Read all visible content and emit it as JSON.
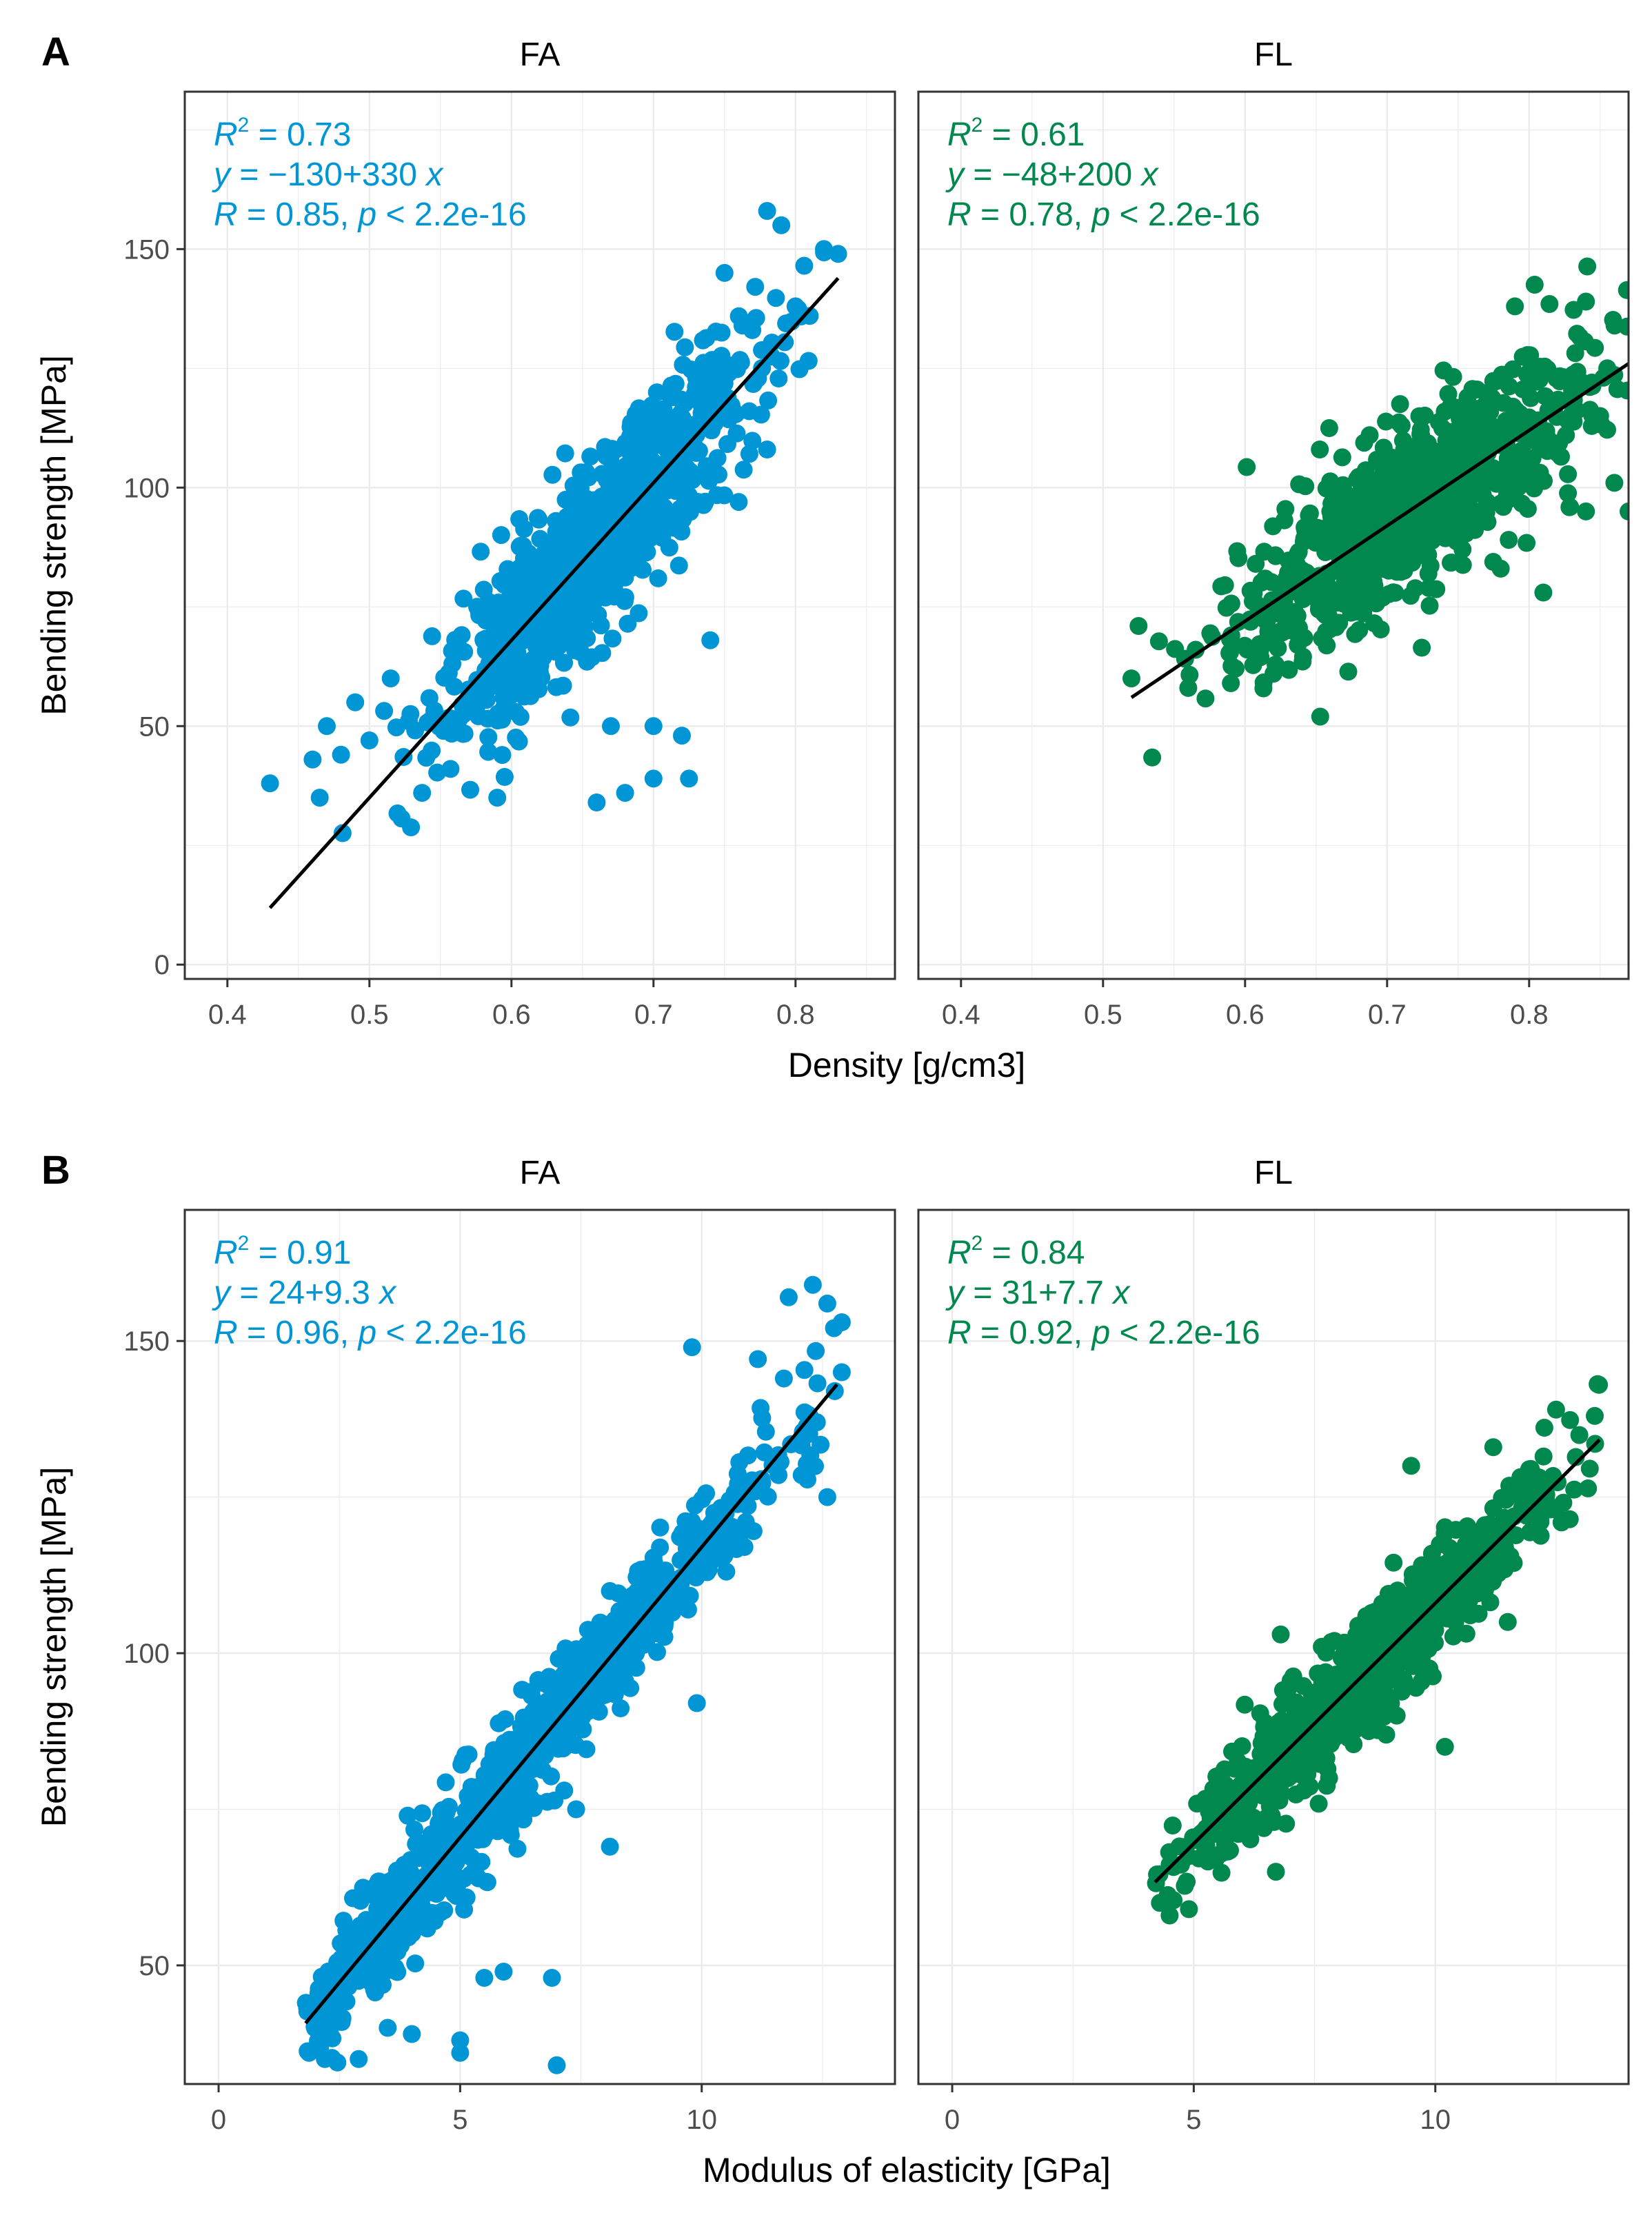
{
  "chart_data": [
    {
      "panel_label": "A",
      "type": "scatter",
      "xlabel": "Density [g/cm3]",
      "ylabel": "Bending strength [MPa]",
      "xlim": [
        0.37,
        0.87
      ],
      "ylim": [
        -3,
        183
      ],
      "xticks": [
        0.4,
        0.5,
        0.6,
        0.7,
        0.8
      ],
      "xtick_labels": [
        "0.4",
        "0.5",
        "0.6",
        "0.7",
        "0.8"
      ],
      "yticks": [
        0,
        50,
        100,
        150
      ],
      "ytick_labels": [
        "0",
        "50",
        "100",
        "150"
      ],
      "grid": true,
      "facets": [
        {
          "title": "FA",
          "color": "#0096D6",
          "stats": {
            "r2": "0.73",
            "eq_lhs": "y",
            "eq_rhs": "= −130+330",
            "eq_var": "x",
            "r": "0.85",
            "p": "2.2e-16"
          },
          "fit": {
            "intercept": -130,
            "slope": 330,
            "x_range": [
              0.43,
              0.83
            ]
          },
          "cloud": {
            "x_range": [
              0.43,
              0.84
            ],
            "x_center": 0.66,
            "x_spread": 0.055,
            "resid_sd": 9,
            "n": 900
          },
          "outliers": [
            [
              0.43,
              38
            ],
            [
              0.46,
              43
            ],
            [
              0.465,
              35
            ],
            [
              0.47,
              50
            ],
            [
              0.48,
              44
            ],
            [
              0.49,
              55
            ],
            [
              0.5,
              47
            ],
            [
              0.515,
              60
            ],
            [
              0.59,
              35
            ],
            [
              0.66,
              34
            ],
            [
              0.68,
              36
            ],
            [
              0.7,
              39
            ],
            [
              0.725,
              39
            ],
            [
              0.67,
              50
            ],
            [
              0.7,
              50
            ],
            [
              0.72,
              48
            ],
            [
              0.74,
              68
            ],
            [
              0.78,
              158
            ],
            [
              0.79,
              155
            ],
            [
              0.82,
              150
            ],
            [
              0.83,
              149
            ],
            [
              0.8,
              138
            ],
            [
              0.81,
              136
            ],
            [
              0.75,
              145
            ],
            [
              0.78,
              108
            ],
            [
              0.72,
              103
            ],
            [
              0.76,
              97
            ]
          ]
        },
        {
          "title": "FL",
          "color": "#00884E",
          "stats": {
            "r2": "0.61",
            "eq_lhs": "y",
            "eq_rhs": "= −48+200",
            "eq_var": "x",
            "r": "0.78",
            "p": "2.2e-16"
          },
          "fit": {
            "intercept": -48,
            "slope": 200,
            "x_range": [
              0.52,
              0.87
            ]
          },
          "cloud": {
            "x_range": [
              0.52,
              0.87
            ],
            "x_center": 0.72,
            "x_spread": 0.06,
            "resid_sd": 9,
            "n": 800
          },
          "outliers": [
            [
              0.52,
              60
            ],
            [
              0.525,
              71
            ],
            [
              0.56,
              58
            ],
            [
              0.59,
              59
            ],
            [
              0.62,
              61
            ],
            [
              0.79,
              138
            ],
            [
              0.84,
              139
            ],
            [
              0.86,
              101
            ],
            [
              0.87,
              95
            ],
            [
              0.81,
              78
            ],
            [
              0.84,
              95
            ],
            [
              0.78,
              83
            ],
            [
              0.64,
              82
            ],
            [
              0.66,
              95
            ],
            [
              0.85,
              115
            ],
            [
              0.855,
              125
            ]
          ]
        }
      ]
    },
    {
      "panel_label": "B",
      "type": "scatter",
      "xlabel": "Modulus of elasticity [GPa]",
      "ylabel": "Bending strength [MPa]",
      "xlim": [
        -0.7,
        14.0
      ],
      "ylim": [
        31,
        171
      ],
      "xticks": [
        0,
        5,
        10
      ],
      "xtick_labels": [
        "0",
        "5",
        "10"
      ],
      "yticks": [
        50,
        100,
        150
      ],
      "ytick_labels": [
        "50",
        "100",
        "150"
      ],
      "grid": true,
      "facets": [
        {
          "title": "FA",
          "color": "#0096D6",
          "stats": {
            "r2": "0.91",
            "eq_lhs": "y",
            "eq_rhs": "= 24+9.3",
            "eq_var": "x",
            "r": "0.96",
            "p": "2.2e-16"
          },
          "fit": {
            "intercept": 24,
            "slope": 9.3,
            "x_range": [
              1.8,
              12.8
            ]
          },
          "cloud": {
            "x_range": [
              1.8,
              12.9
            ],
            "x_center": 6.0,
            "x_spread": 2.7,
            "resid_sd": 4.5,
            "n": 900
          },
          "outliers": [
            [
              2.2,
              35
            ],
            [
              2.9,
              35
            ],
            [
              3.5,
              40
            ],
            [
              4.0,
              39
            ],
            [
              5.0,
              38
            ],
            [
              5.0,
              36
            ],
            [
              5.5,
              48
            ],
            [
              5.9,
              49
            ],
            [
              6.9,
              48
            ],
            [
              7.0,
              34
            ],
            [
              8.1,
              69
            ],
            [
              9.8,
              149
            ],
            [
              11.8,
              157
            ],
            [
              12.3,
              159
            ],
            [
              12.6,
              156
            ],
            [
              12.9,
              153
            ],
            [
              12.9,
              145
            ],
            [
              12.6,
              125
            ],
            [
              9.9,
              92
            ],
            [
              7.4,
              75
            ]
          ]
        },
        {
          "title": "FL",
          "color": "#00884E",
          "stats": {
            "r2": "0.84",
            "eq_lhs": "y",
            "eq_rhs": "= 31+7.7",
            "eq_var": "x",
            "r": "0.92",
            "p": "2.2e-16"
          },
          "fit": {
            "intercept": 31,
            "slope": 7.7,
            "x_range": [
              4.2,
              13.4
            ]
          },
          "cloud": {
            "x_range": [
              4.2,
              13.4
            ],
            "x_center": 8.6,
            "x_spread": 1.9,
            "resid_sd": 4.5,
            "n": 800
          },
          "outliers": [
            [
              4.5,
              58
            ],
            [
              4.3,
              60
            ],
            [
              4.9,
              59
            ],
            [
              6.7,
              65
            ],
            [
              6.8,
              103
            ],
            [
              9.5,
              130
            ],
            [
              12.5,
              139
            ],
            [
              13.3,
              138
            ],
            [
              11.2,
              133
            ],
            [
              11.5,
              105
            ],
            [
              10.2,
              85
            ],
            [
              7.8,
              80
            ],
            [
              9.2,
              90
            ],
            [
              5.5,
              75
            ]
          ]
        }
      ]
    }
  ]
}
